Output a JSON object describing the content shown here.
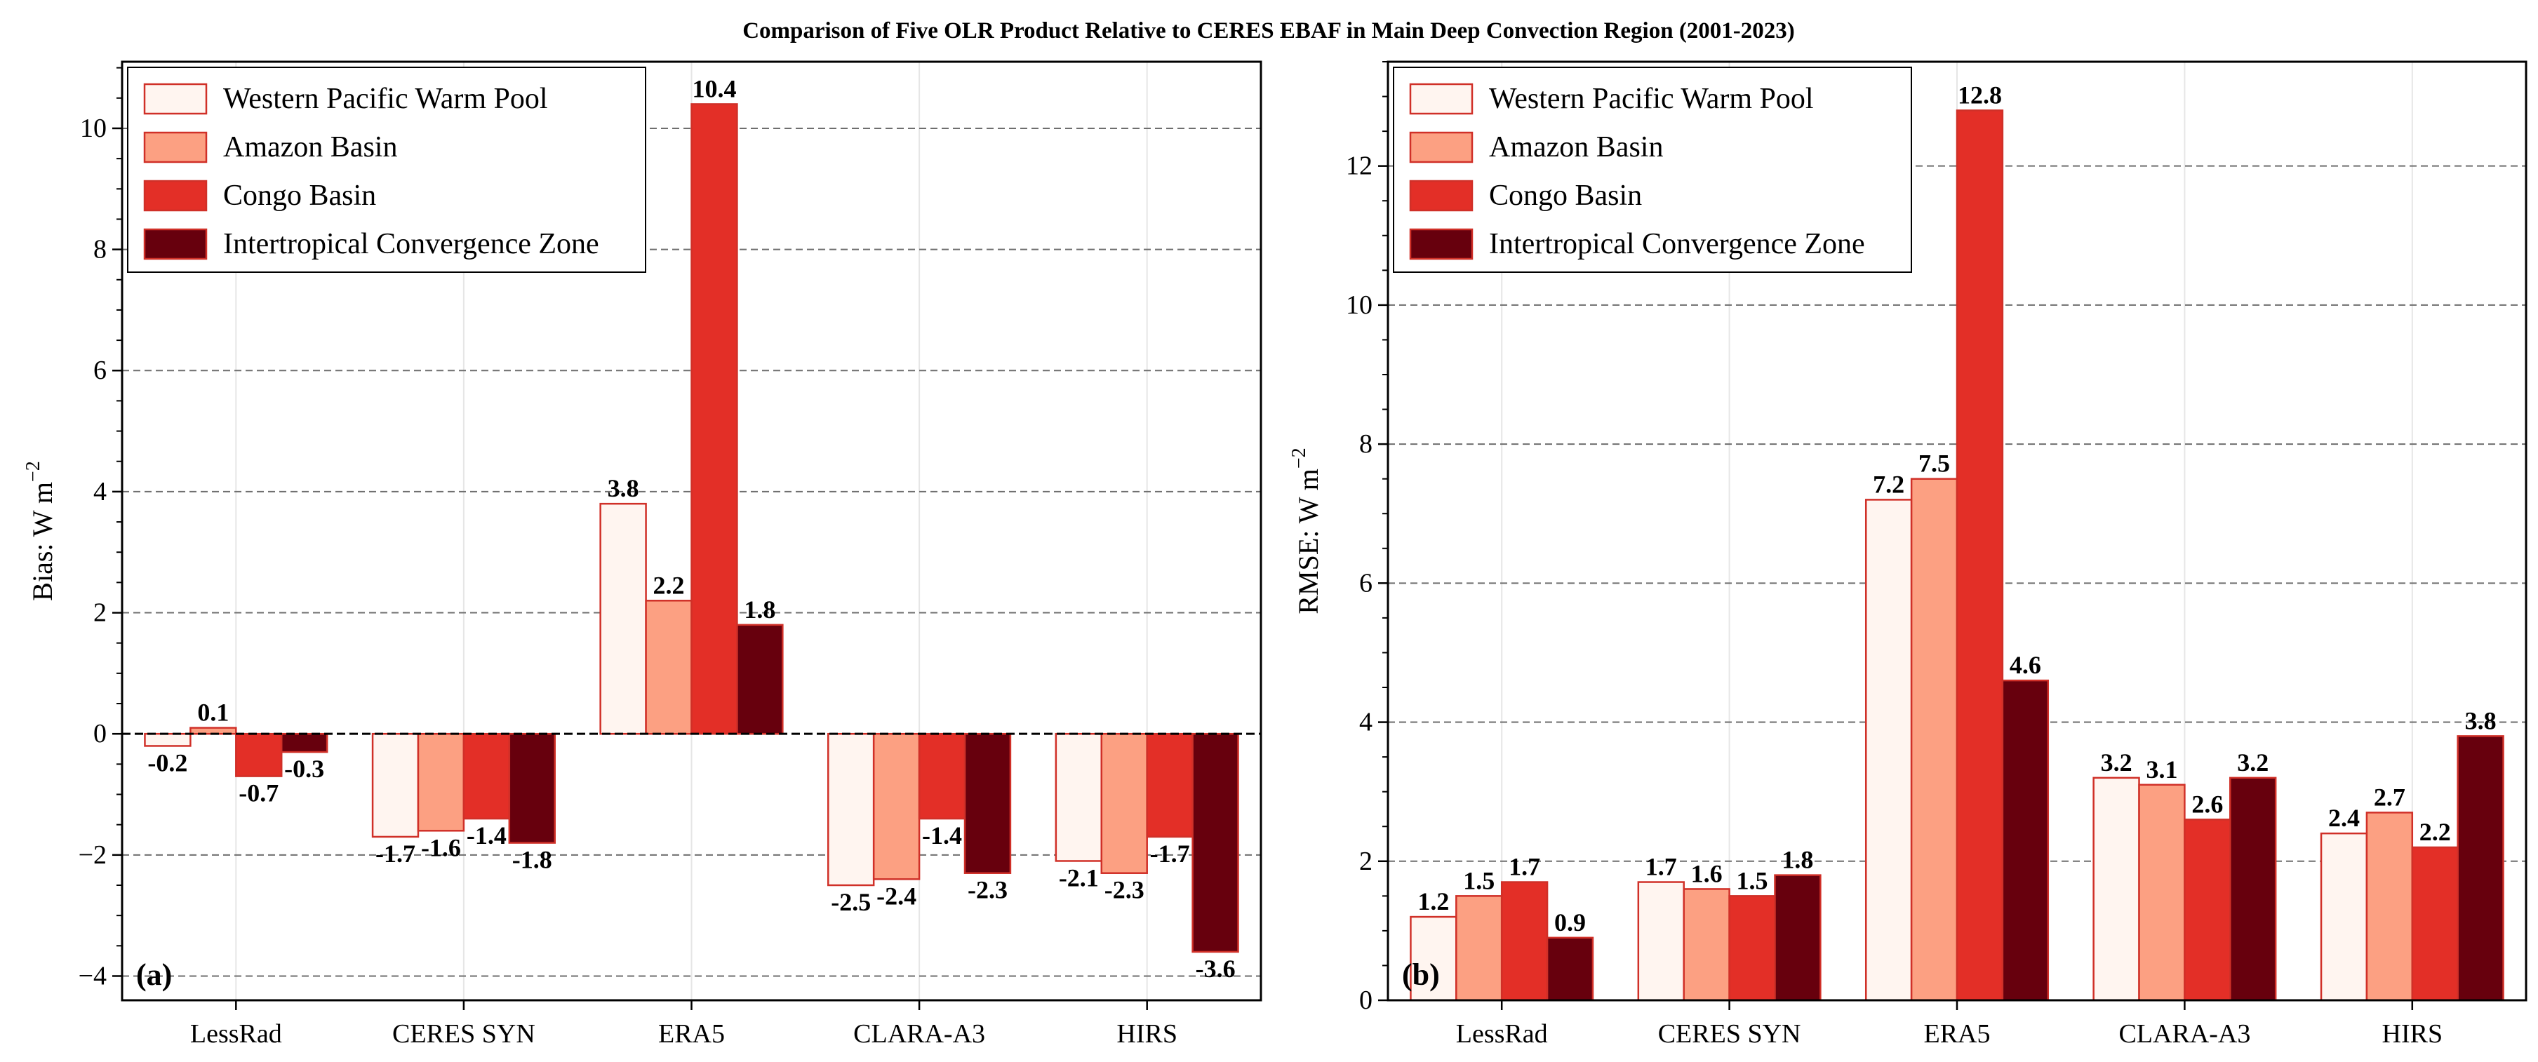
{
  "title": "Comparison of Five OLR Product Relative to CERES EBAF in Main Deep Convection Region (2001-2023)",
  "colors": {
    "Western Pacific Warm Pool": "#fff5f0",
    "Amazon Basin": "#fca082",
    "Congo Basin": "#e32f27",
    "Intertropical Convergence Zone": "#67000d",
    "bar_edge": "#d03028"
  },
  "chart_data": [
    {
      "type": "bar",
      "panel_label": "(a)",
      "ylabel": "Bias: W m",
      "ylabel_sup": "−2",
      "ylim": [
        -4.4,
        11.1
      ],
      "yticks": [
        -4,
        -2,
        0,
        2,
        4,
        6,
        8,
        10
      ],
      "ytick_labels": [
        "−4",
        "−2",
        "0",
        "2",
        "4",
        "6",
        "8",
        "10"
      ],
      "grid": "horizontal-dashed",
      "zero_line": true,
      "legend": "top-left",
      "categories": [
        "LessRad",
        "CERES SYN",
        "ERA5",
        "CLARA-A3",
        "HIRS"
      ],
      "series": [
        {
          "name": "Western Pacific Warm Pool",
          "values": [
            -0.2,
            -1.7,
            3.8,
            -2.5,
            -2.1
          ],
          "labels": [
            "-0.2",
            "-1.7",
            "3.8",
            "-2.5",
            "-2.1"
          ]
        },
        {
          "name": "Amazon Basin",
          "values": [
            0.1,
            -1.6,
            2.2,
            -2.4,
            -2.3
          ],
          "labels": [
            "0.1",
            "-1.6",
            "2.2",
            "-2.4",
            "-2.3"
          ]
        },
        {
          "name": "Congo Basin",
          "values": [
            -0.7,
            -1.4,
            10.4,
            -1.4,
            -1.7
          ],
          "labels": [
            "-0.7",
            "-1.4",
            "10.4",
            "-1.4",
            "-1.7"
          ]
        },
        {
          "name": "Intertropical Convergence Zone",
          "values": [
            -0.3,
            -1.8,
            1.8,
            -2.3,
            -3.6
          ],
          "labels": [
            "-0.3",
            "-1.8",
            "1.8",
            "-2.3",
            "-3.6"
          ]
        }
      ]
    },
    {
      "type": "bar",
      "panel_label": "(b)",
      "ylabel": "RMSE: W m",
      "ylabel_sup": "−2",
      "ylim": [
        0,
        13.5
      ],
      "yticks": [
        0,
        2,
        4,
        6,
        8,
        10,
        12
      ],
      "ytick_labels": [
        "0",
        "2",
        "4",
        "6",
        "8",
        "10",
        "12"
      ],
      "grid": "horizontal-dashed",
      "zero_line": false,
      "legend": "top-left",
      "categories": [
        "LessRad",
        "CERES SYN",
        "ERA5",
        "CLARA-A3",
        "HIRS"
      ],
      "series": [
        {
          "name": "Western Pacific Warm Pool",
          "values": [
            1.2,
            1.7,
            7.2,
            3.2,
            2.4
          ],
          "labels": [
            "1.2",
            "1.7",
            "7.2",
            "3.2",
            "2.4"
          ]
        },
        {
          "name": "Amazon Basin",
          "values": [
            1.5,
            1.6,
            7.5,
            3.1,
            2.7
          ],
          "labels": [
            "1.5",
            "1.6",
            "7.5",
            "3.1",
            "2.7"
          ]
        },
        {
          "name": "Congo Basin",
          "values": [
            1.7,
            1.5,
            12.8,
            2.6,
            2.2
          ],
          "labels": [
            "1.7",
            "1.5",
            "12.8",
            "2.6",
            "2.2"
          ]
        },
        {
          "name": "Intertropical Convergence Zone",
          "values": [
            0.9,
            1.8,
            4.6,
            3.2,
            3.8
          ],
          "labels": [
            "0.9",
            "1.8",
            "4.6",
            "3.2",
            "3.8"
          ]
        }
      ]
    }
  ]
}
